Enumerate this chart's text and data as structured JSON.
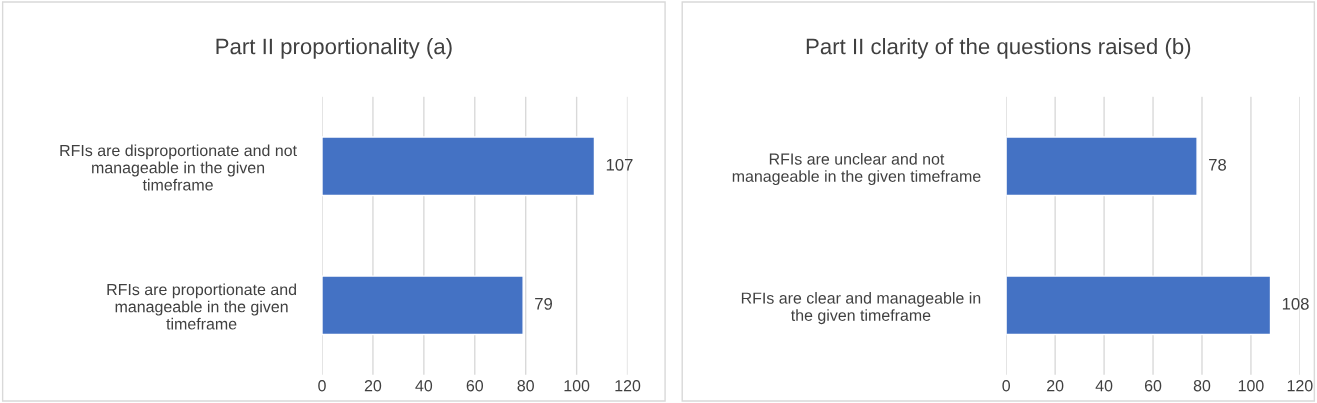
{
  "chart_data": [
    {
      "type": "bar",
      "orientation": "horizontal",
      "title": "Part II proportionality (a)",
      "categories": [
        "RFIs are disproportionate and not\nmanageable in the given\ntimeframe",
        "RFIs are proportionate and\nmanageable in the given\ntimeframe"
      ],
      "values": [
        107,
        79
      ],
      "color": "#4472c4",
      "xlim": [
        0,
        120
      ],
      "xticks": [
        0,
        20,
        40,
        60,
        80,
        100,
        120
      ],
      "grid": "x",
      "data_labels": true,
      "legend": false
    },
    {
      "type": "bar",
      "orientation": "horizontal",
      "title": "Part II clarity of the questions raised (b)",
      "categories": [
        "RFIs are unclear and not\nmanageable in the given timeframe",
        "RFIs are clear and manageable in\nthe given timeframe"
      ],
      "values": [
        78,
        108
      ],
      "color": "#4472c4",
      "xlim": [
        0,
        120
      ],
      "xticks": [
        0,
        20,
        40,
        60,
        80,
        100,
        120
      ],
      "grid": "x",
      "data_labels": true,
      "legend": false
    }
  ]
}
